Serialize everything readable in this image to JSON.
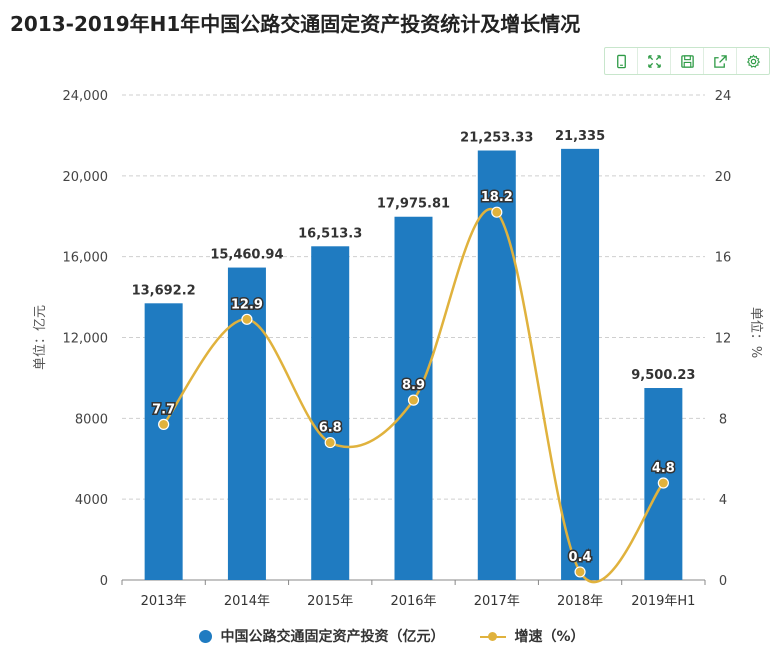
{
  "title": "2013-2019年H1年中国公路交通固定资产投资统计及增长情况",
  "toolbar": {
    "icons": [
      "phone-icon",
      "fullscreen-icon",
      "save-icon",
      "export-icon",
      "settings-icon"
    ]
  },
  "colors": {
    "bar": "#1f7bc1",
    "line": "#e0b23d",
    "toolbar_icon": "#2e9b46"
  },
  "chart_data": {
    "type": "bar",
    "categories": [
      "2013年",
      "2014年",
      "2015年",
      "2016年",
      "2017年",
      "2018年",
      "2019年H1"
    ],
    "series": [
      {
        "name": "中国公路交通固定资产投资（亿元）",
        "type": "bar",
        "axis": "left",
        "values": [
          13692.2,
          15460.94,
          16513.3,
          17975.81,
          21253.33,
          21335,
          9500.23
        ],
        "labels": [
          "13,692.2",
          "15,460.94",
          "16,513.3",
          "17,975.81",
          "21,253.33",
          "21,335",
          "9,500.23"
        ]
      },
      {
        "name": "增速（%）",
        "type": "line",
        "axis": "right",
        "values": [
          7.7,
          12.9,
          6.8,
          8.9,
          18.2,
          0.4,
          4.8
        ],
        "labels": [
          "7.7",
          "12.9",
          "6.8",
          "8.9",
          "18.2",
          "0.4",
          "4.8"
        ]
      }
    ],
    "left_axis": {
      "label": "单位：亿元",
      "ylim": [
        0,
        24000
      ],
      "ticks": [
        0,
        4000,
        8000,
        12000,
        16000,
        20000,
        24000
      ],
      "tick_labels": [
        "0",
        "4000",
        "8000",
        "12,000",
        "16,000",
        "20,000",
        "24,000"
      ]
    },
    "right_axis": {
      "label": "单位：%",
      "ylim": [
        0,
        24
      ],
      "ticks": [
        0,
        4,
        8,
        12,
        16,
        20,
        24
      ],
      "tick_labels": [
        "0",
        "4",
        "8",
        "12",
        "16",
        "20",
        "24"
      ]
    },
    "grid": true,
    "legend_position": "bottom-center"
  }
}
